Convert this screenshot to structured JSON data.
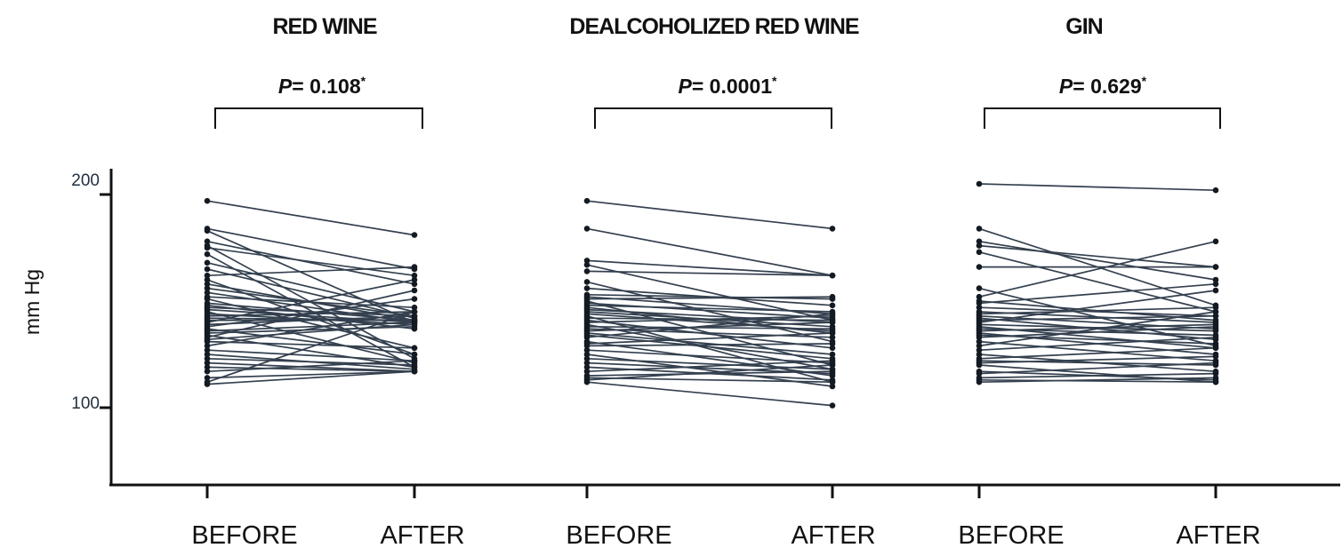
{
  "chart_data": {
    "type": "line",
    "ylabel": "mm Hg",
    "ylim": [
      100,
      200
    ],
    "yticks": [
      100,
      200
    ],
    "ytick_labels": [
      "100",
      "200"
    ],
    "grid": false,
    "categories": [
      "BEFORE",
      "AFTER"
    ],
    "panels": [
      {
        "title": "RED WINE",
        "pvalue": {
          "prefix": "P",
          "text": "= 0.108",
          "marker": "*"
        },
        "categories": [
          "BEFORE",
          "AFTER"
        ],
        "pairs": [
          [
            197,
            181
          ],
          [
            184,
            165
          ],
          [
            183,
            140
          ],
          [
            178,
            158
          ],
          [
            176,
            123
          ],
          [
            175,
            162
          ],
          [
            172,
            119
          ],
          [
            168,
            145
          ],
          [
            165,
            142
          ],
          [
            162,
            166
          ],
          [
            160,
            125
          ],
          [
            158,
            141
          ],
          [
            156,
            143
          ],
          [
            154,
            140
          ],
          [
            152,
            147
          ],
          [
            151,
            128
          ],
          [
            149,
            141
          ],
          [
            148,
            137
          ],
          [
            147,
            143
          ],
          [
            146,
            140
          ],
          [
            145,
            121
          ],
          [
            144,
            139
          ],
          [
            143,
            145
          ],
          [
            142,
            141
          ],
          [
            141,
            141
          ],
          [
            140,
            160
          ],
          [
            139,
            143
          ],
          [
            138,
            151
          ],
          [
            137,
            125
          ],
          [
            136,
            140
          ],
          [
            135,
            138
          ],
          [
            134,
            119
          ],
          [
            133,
            155
          ],
          [
            132,
            139
          ],
          [
            131,
            128
          ],
          [
            129,
            145
          ],
          [
            127,
            122
          ],
          [
            125,
            118
          ],
          [
            123,
            120
          ],
          [
            121,
            117
          ],
          [
            119,
            117
          ],
          [
            117,
            122
          ],
          [
            114,
            117
          ],
          [
            112,
            145
          ],
          [
            111,
            117
          ]
        ]
      },
      {
        "title": "DEALCOHOLIZED RED WINE",
        "pvalue": {
          "prefix": "P",
          "text": "= 0.0001",
          "marker": "*"
        },
        "categories": [
          "BEFORE",
          "AFTER"
        ],
        "pairs": [
          [
            197,
            184
          ],
          [
            184,
            162
          ],
          [
            169,
            162
          ],
          [
            167,
            141
          ],
          [
            164,
            162
          ],
          [
            159,
            131
          ],
          [
            156,
            148
          ],
          [
            153,
            151
          ],
          [
            152,
            144
          ],
          [
            151,
            152
          ],
          [
            150,
            120
          ],
          [
            149,
            142
          ],
          [
            148,
            145
          ],
          [
            147,
            135
          ],
          [
            146,
            140
          ],
          [
            145,
            138
          ],
          [
            144,
            136
          ],
          [
            143,
            112
          ],
          [
            142,
            141
          ],
          [
            141,
            128
          ],
          [
            140,
            143
          ],
          [
            139,
            118
          ],
          [
            138,
            137
          ],
          [
            137,
            133
          ],
          [
            136,
            140
          ],
          [
            135,
            125
          ],
          [
            134,
            123
          ],
          [
            133,
            144
          ],
          [
            131,
            115
          ],
          [
            130,
            135
          ],
          [
            129,
            130
          ],
          [
            127,
            121
          ],
          [
            125,
            110
          ],
          [
            123,
            118
          ],
          [
            121,
            116
          ],
          [
            119,
            113
          ],
          [
            117,
            122
          ],
          [
            115,
            117
          ],
          [
            114,
            112
          ],
          [
            113,
            120
          ],
          [
            112,
            101
          ]
        ]
      },
      {
        "title": "GIN",
        "pvalue": {
          "prefix": "P",
          "text": "= 0.629",
          "marker": "*"
        },
        "categories": [
          "BEFORE",
          "AFTER"
        ],
        "pairs": [
          [
            205,
            202
          ],
          [
            184,
            148
          ],
          [
            178,
            160
          ],
          [
            176,
            166
          ],
          [
            173,
            145
          ],
          [
            166,
            166
          ],
          [
            156,
            129
          ],
          [
            152,
            178
          ],
          [
            150,
            141
          ],
          [
            149,
            158
          ],
          [
            147,
            143
          ],
          [
            145,
            140
          ],
          [
            144,
            147
          ],
          [
            143,
            137
          ],
          [
            142,
            132
          ],
          [
            141,
            143
          ],
          [
            140,
            155
          ],
          [
            139,
            136
          ],
          [
            138,
            128
          ],
          [
            137,
            134
          ],
          [
            136,
            139
          ],
          [
            135,
            125
          ],
          [
            134,
            130
          ],
          [
            133,
            138
          ],
          [
            131,
            122
          ],
          [
            129,
            145
          ],
          [
            127,
            133
          ],
          [
            125,
            117
          ],
          [
            123,
            128
          ],
          [
            122,
            120
          ],
          [
            121,
            124
          ],
          [
            120,
            112
          ],
          [
            117,
            113
          ],
          [
            116,
            121
          ],
          [
            114,
            116
          ],
          [
            113,
            112
          ],
          [
            112,
            114
          ]
        ]
      }
    ]
  }
}
